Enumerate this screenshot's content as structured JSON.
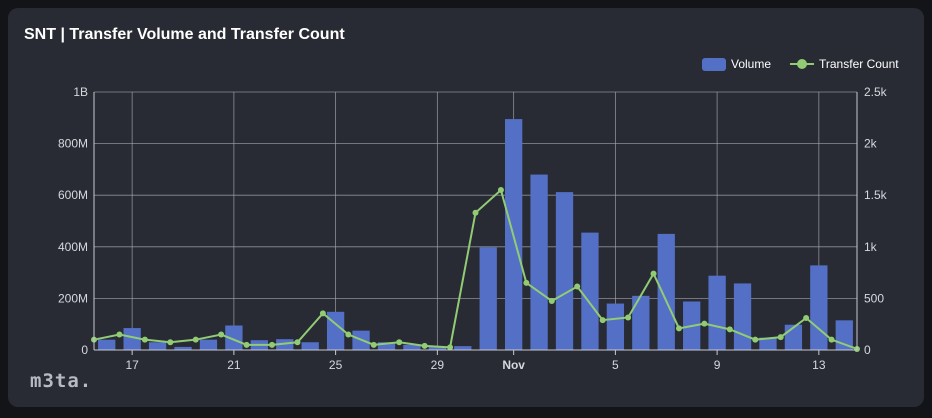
{
  "chart_data": {
    "type": "bar+line",
    "title": "SNT | Transfer Volume and Transfer Count",
    "legend": [
      "Volume",
      "Transfer Count"
    ],
    "legend_position": "top-right",
    "x_tick_labels": [
      {
        "index": 1,
        "label": "17"
      },
      {
        "index": 5,
        "label": "21"
      },
      {
        "index": 9,
        "label": "25"
      },
      {
        "index": 13,
        "label": "29"
      },
      {
        "index": 16,
        "label": "Nov",
        "bold": true
      },
      {
        "index": 20,
        "label": "5"
      },
      {
        "index": 24,
        "label": "9"
      },
      {
        "index": 28,
        "label": "13"
      }
    ],
    "y_left": {
      "min": 0,
      "max": 1000000000,
      "ticks": [
        "0",
        "200M",
        "400M",
        "600M",
        "800M",
        "1B"
      ]
    },
    "y_right": {
      "min": 0,
      "max": 2500,
      "ticks": [
        "0",
        "500",
        "1k",
        "1.5k",
        "2k",
        "2.5k"
      ]
    },
    "grid": true,
    "series": [
      {
        "name": "Volume",
        "type": "bar",
        "axis": "left",
        "color": "#5470c6",
        "values": [
          40000000,
          85000000,
          30000000,
          12000000,
          40000000,
          95000000,
          38000000,
          42000000,
          30000000,
          148000000,
          75000000,
          30000000,
          20000000,
          14000000,
          15000000,
          398000000,
          895000000,
          680000000,
          612000000,
          455000000,
          180000000,
          210000000,
          450000000,
          188000000,
          288000000,
          258000000,
          48000000,
          98000000,
          328000000,
          115000000
        ]
      },
      {
        "name": "Transfer Count",
        "type": "line",
        "axis": "right",
        "color": "#91cc75",
        "values": [
          100,
          150,
          100,
          75,
          100,
          150,
          50,
          50,
          75,
          355,
          150,
          50,
          75,
          40,
          25,
          1330,
          1550,
          650,
          475,
          615,
          290,
          315,
          740,
          210,
          255,
          200,
          100,
          125,
          310,
          100,
          10
        ]
      }
    ]
  },
  "brand": {
    "logo_text": "m3ta."
  }
}
